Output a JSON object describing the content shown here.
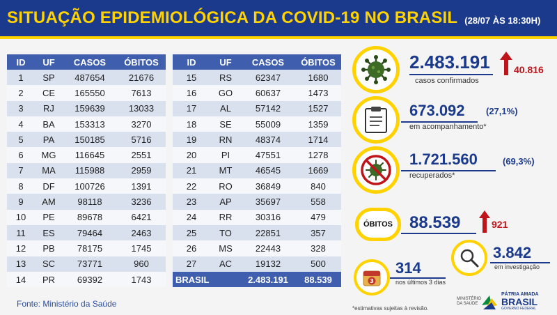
{
  "header": {
    "title": "SITUAÇÃO EPIDEMIOLÓGICA DA COVID-19 NO BRASIL",
    "date": "(28/07 ÀS 18:30H)"
  },
  "table": {
    "columns": [
      "ID",
      "UF",
      "CASOS",
      "ÓBITOS"
    ],
    "left": [
      [
        "1",
        "SP",
        "487654",
        "21676"
      ],
      [
        "2",
        "CE",
        "165550",
        "7613"
      ],
      [
        "3",
        "RJ",
        "159639",
        "13033"
      ],
      [
        "4",
        "BA",
        "153313",
        "3270"
      ],
      [
        "5",
        "PA",
        "150185",
        "5716"
      ],
      [
        "6",
        "MG",
        "116645",
        "2551"
      ],
      [
        "7",
        "MA",
        "115988",
        "2959"
      ],
      [
        "8",
        "DF",
        "100726",
        "1391"
      ],
      [
        "9",
        "AM",
        "98118",
        "3236"
      ],
      [
        "10",
        "PE",
        "89678",
        "6421"
      ],
      [
        "11",
        "ES",
        "79464",
        "2463"
      ],
      [
        "12",
        "PB",
        "78175",
        "1745"
      ],
      [
        "13",
        "SC",
        "73771",
        "960"
      ],
      [
        "14",
        "PR",
        "69392",
        "1743"
      ]
    ],
    "right": [
      [
        "15",
        "RS",
        "62347",
        "1680"
      ],
      [
        "16",
        "GO",
        "60637",
        "1473"
      ],
      [
        "17",
        "AL",
        "57142",
        "1527"
      ],
      [
        "18",
        "SE",
        "55009",
        "1359"
      ],
      [
        "19",
        "RN",
        "48374",
        "1714"
      ],
      [
        "20",
        "PI",
        "47551",
        "1278"
      ],
      [
        "21",
        "MT",
        "46545",
        "1669"
      ],
      [
        "22",
        "RO",
        "36849",
        "840"
      ],
      [
        "23",
        "AP",
        "35697",
        "558"
      ],
      [
        "24",
        "RR",
        "30316",
        "479"
      ],
      [
        "25",
        "TO",
        "22851",
        "357"
      ],
      [
        "26",
        "MS",
        "22443",
        "328"
      ],
      [
        "27",
        "AC",
        "19132",
        "500"
      ]
    ],
    "total": {
      "label": "BRASIL",
      "cases": "2.483.191",
      "deaths": "88.539"
    }
  },
  "source": "Fonte: Ministério da Saúde",
  "stats": {
    "confirmed": {
      "value": "2.483.191",
      "label": "casos confirmados",
      "increase": "40.816"
    },
    "monitoring": {
      "value": "673.092",
      "pct": "(27,1%)",
      "label": "em acompanhamento*"
    },
    "recovered": {
      "value": "1.721.560",
      "pct": "(69,3%)",
      "label": "recuperados*"
    },
    "deaths": {
      "badge": "ÓBITOS",
      "value": "88.539",
      "increase": "921"
    },
    "last3days": {
      "value": "314",
      "label": "nos últimos 3 dias",
      "calendar_number": "3"
    },
    "investigation": {
      "value": "3.842",
      "label": "em investigação"
    }
  },
  "footnote": "*estimativas sujeitas à revisão.",
  "logos": {
    "ministry": "MINISTÉRIO DA SAÚDE",
    "brand_line1": "PÁTRIA AMADA",
    "brand_line2": "BRASIL",
    "brand_line3": "GOVERNO FEDERAL"
  },
  "colors": {
    "navy": "#1b3a8c",
    "yellow": "#ffd200",
    "red": "#c0141b",
    "virus_green": "#3d6b25"
  }
}
